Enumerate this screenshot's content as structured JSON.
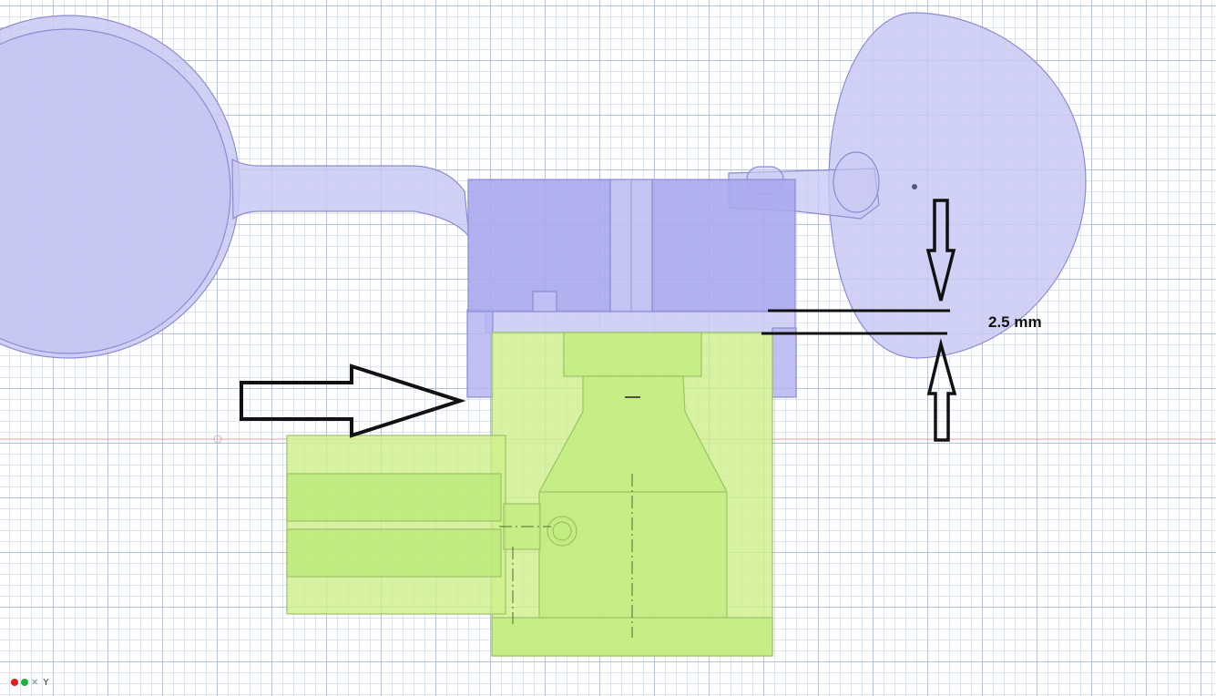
{
  "viewport": {
    "dimension_label": "2.5 mm",
    "axis_label": "Y",
    "colors": {
      "blue_part_fill": "#c9c9f5",
      "blue_part_edge": "#8c8cd4",
      "blue_hub_fill": "#a9a9ee",
      "green_part_fill": "#cdf08a",
      "green_part_edge": "#9fc067",
      "annotation": "#111111",
      "axis_red": "#e02020",
      "axis_green": "#20b040",
      "origin_line": "#e8a0a0"
    },
    "axis_icons": [
      "x-axis-red-dot",
      "y-axis-green-dot",
      "z-axis-gray-marker"
    ]
  }
}
